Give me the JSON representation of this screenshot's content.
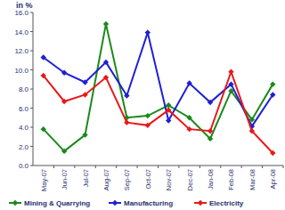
{
  "chart_data": {
    "type": "line",
    "y_label": "in %",
    "categories": [
      "May-07",
      "Jun-07",
      "Jul-07",
      "Aug-07",
      "Sep-07",
      "Oct-07",
      "Nov-07",
      "Dec-07",
      "Jan-08",
      "Feb-08",
      "Mar-08",
      "Apr-08"
    ],
    "series": [
      {
        "name": "Mining & Quarrying",
        "color": "#1a8a1a",
        "marker": "diamond",
        "values": [
          3.8,
          1.5,
          3.2,
          14.8,
          5.0,
          5.2,
          6.3,
          5.0,
          2.8,
          7.8,
          4.8,
          8.5
        ]
      },
      {
        "name": "Manufacturing",
        "color": "#1f1fd6",
        "marker": "diamond",
        "values": [
          11.3,
          9.7,
          8.7,
          10.8,
          7.3,
          13.9,
          4.7,
          8.6,
          6.6,
          8.5,
          4.1,
          7.4
        ]
      },
      {
        "name": "Electricity",
        "color": "#e8191a",
        "marker": "diamond",
        "values": [
          9.4,
          6.7,
          7.4,
          9.2,
          4.5,
          4.2,
          5.8,
          3.8,
          3.6,
          9.8,
          3.6,
          1.3
        ]
      }
    ],
    "ylim": [
      0,
      16
    ],
    "yticks": [
      {
        "value": 0,
        "label": "0.0"
      },
      {
        "value": 2,
        "label": "2.0"
      },
      {
        "value": 4,
        "label": "4.0"
      },
      {
        "value": 6,
        "label": "6.0"
      },
      {
        "value": 8,
        "label": "8.0"
      },
      {
        "value": 10,
        "label": "10.0"
      },
      {
        "value": 12,
        "label": "12.0"
      },
      {
        "value": 14,
        "label": "14.0"
      },
      {
        "value": 16,
        "label": "16.0"
      }
    ],
    "grid": false,
    "legend": "bottom"
  }
}
